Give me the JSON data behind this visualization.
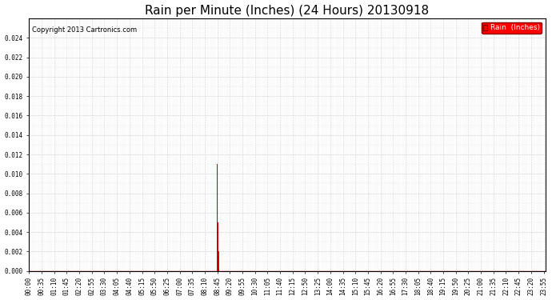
{
  "title": "Rain per Minute (Inches) (24 Hours) 20130918",
  "copyright": "Copyright 2013 Cartronics.com",
  "legend_label": "Rain  (Inches)",
  "ylim_max": 0.026,
  "yticks": [
    0.0,
    0.002,
    0.004,
    0.006,
    0.008,
    0.01,
    0.012,
    0.014,
    0.016,
    0.018,
    0.02,
    0.022,
    0.024
  ],
  "background_color": "#ffffff",
  "plot_bg_color": "#ffffff",
  "grid_color": "#cccccc",
  "bar_color": "#cc0000",
  "zero_line_color": "#cc0000",
  "title_fontsize": 11,
  "copyright_fontsize": 6,
  "tick_fontsize": 5.5,
  "legend_fontsize": 6.5,
  "total_minutes": 1440,
  "rain_data": {
    "525": 0.011,
    "526": 0.011,
    "527": 0.005,
    "528": 0.005,
    "529": 0.002
  },
  "xtick_labels": [
    "00:00",
    "00:35",
    "01:10",
    "01:45",
    "02:20",
    "02:55",
    "03:30",
    "04:05",
    "04:40",
    "05:15",
    "05:50",
    "06:25",
    "07:00",
    "07:35",
    "08:10",
    "08:45",
    "09:20",
    "09:55",
    "10:30",
    "11:05",
    "11:40",
    "12:15",
    "12:50",
    "13:25",
    "14:00",
    "14:35",
    "15:10",
    "15:45",
    "16:20",
    "16:55",
    "17:30",
    "18:05",
    "18:40",
    "19:15",
    "19:50",
    "20:25",
    "21:00",
    "21:35",
    "22:10",
    "22:45",
    "23:20",
    "23:55"
  ]
}
